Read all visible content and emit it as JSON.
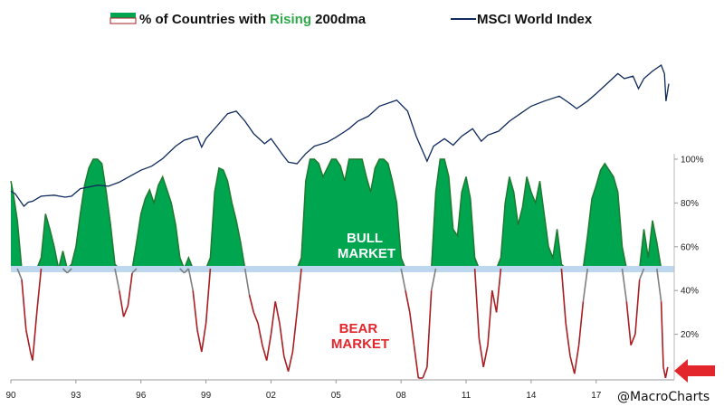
{
  "chart_data": {
    "type": "line",
    "legend": {
      "placement": "top",
      "series1_parts": [
        "% of Countries with ",
        "Rising",
        " 200dma"
      ],
      "series2": "MSCI World Index"
    },
    "series": [
      {
        "name": "% of Countries with Rising 200dma",
        "unit": "percent",
        "points": [
          [
            1990.0,
            90
          ],
          [
            1990.1,
            85
          ],
          [
            1990.3,
            72
          ],
          [
            1990.5,
            45
          ],
          [
            1990.7,
            22
          ],
          [
            1990.9,
            12
          ],
          [
            1991.0,
            8
          ],
          [
            1991.2,
            30
          ],
          [
            1991.4,
            55
          ],
          [
            1991.6,
            75
          ],
          [
            1991.8,
            68
          ],
          [
            1992.0,
            60
          ],
          [
            1992.2,
            50
          ],
          [
            1992.4,
            58
          ],
          [
            1992.6,
            48
          ],
          [
            1992.8,
            52
          ],
          [
            1993.0,
            60
          ],
          [
            1993.2,
            75
          ],
          [
            1993.4,
            88
          ],
          [
            1993.6,
            96
          ],
          [
            1993.8,
            100
          ],
          [
            1994.0,
            100
          ],
          [
            1994.2,
            98
          ],
          [
            1994.4,
            85
          ],
          [
            1994.6,
            70
          ],
          [
            1994.8,
            52
          ],
          [
            1995.0,
            40
          ],
          [
            1995.2,
            28
          ],
          [
            1995.4,
            33
          ],
          [
            1995.6,
            48
          ],
          [
            1995.8,
            62
          ],
          [
            1996.0,
            75
          ],
          [
            1996.2,
            82
          ],
          [
            1996.4,
            86
          ],
          [
            1996.6,
            80
          ],
          [
            1996.8,
            88
          ],
          [
            1997.0,
            92
          ],
          [
            1997.2,
            86
          ],
          [
            1997.4,
            80
          ],
          [
            1997.6,
            70
          ],
          [
            1997.8,
            55
          ],
          [
            1998.0,
            48
          ],
          [
            1998.2,
            55
          ],
          [
            1998.4,
            40
          ],
          [
            1998.6,
            22
          ],
          [
            1998.8,
            12
          ],
          [
            1999.0,
            25
          ],
          [
            1999.2,
            55
          ],
          [
            1999.4,
            85
          ],
          [
            1999.6,
            96
          ],
          [
            1999.8,
            95
          ],
          [
            2000.0,
            90
          ],
          [
            2000.2,
            80
          ],
          [
            2000.4,
            72
          ],
          [
            2000.6,
            62
          ],
          [
            2000.8,
            50
          ],
          [
            2001.0,
            38
          ],
          [
            2001.2,
            30
          ],
          [
            2001.4,
            25
          ],
          [
            2001.6,
            15
          ],
          [
            2001.8,
            8
          ],
          [
            2002.0,
            20
          ],
          [
            2002.2,
            35
          ],
          [
            2002.4,
            25
          ],
          [
            2002.6,
            10
          ],
          [
            2002.8,
            3
          ],
          [
            2003.0,
            12
          ],
          [
            2003.2,
            30
          ],
          [
            2003.4,
            55
          ],
          [
            2003.6,
            90
          ],
          [
            2003.8,
            100
          ],
          [
            2004.0,
            100
          ],
          [
            2004.2,
            98
          ],
          [
            2004.4,
            92
          ],
          [
            2004.6,
            96
          ],
          [
            2004.8,
            100
          ],
          [
            2005.0,
            100
          ],
          [
            2005.2,
            97
          ],
          [
            2005.4,
            90
          ],
          [
            2005.6,
            100
          ],
          [
            2005.8,
            100
          ],
          [
            2006.0,
            100
          ],
          [
            2006.2,
            100
          ],
          [
            2006.4,
            92
          ],
          [
            2006.6,
            85
          ],
          [
            2006.8,
            96
          ],
          [
            2007.0,
            100
          ],
          [
            2007.2,
            100
          ],
          [
            2007.4,
            98
          ],
          [
            2007.6,
            90
          ],
          [
            2007.8,
            80
          ],
          [
            2008.0,
            55
          ],
          [
            2008.2,
            40
          ],
          [
            2008.4,
            30
          ],
          [
            2008.6,
            15
          ],
          [
            2008.8,
            0
          ],
          [
            2009.0,
            0
          ],
          [
            2009.2,
            5
          ],
          [
            2009.4,
            40
          ],
          [
            2009.6,
            85
          ],
          [
            2009.8,
            100
          ],
          [
            2010.0,
            100
          ],
          [
            2010.2,
            92
          ],
          [
            2010.4,
            68
          ],
          [
            2010.6,
            65
          ],
          [
            2010.8,
            85
          ],
          [
            2011.0,
            92
          ],
          [
            2011.2,
            82
          ],
          [
            2011.4,
            55
          ],
          [
            2011.6,
            18
          ],
          [
            2011.8,
            5
          ],
          [
            2012.0,
            15
          ],
          [
            2012.2,
            40
          ],
          [
            2012.4,
            30
          ],
          [
            2012.6,
            55
          ],
          [
            2012.8,
            80
          ],
          [
            2013.0,
            92
          ],
          [
            2013.2,
            85
          ],
          [
            2013.4,
            70
          ],
          [
            2013.6,
            78
          ],
          [
            2013.8,
            92
          ],
          [
            2014.0,
            85
          ],
          [
            2014.2,
            80
          ],
          [
            2014.4,
            90
          ],
          [
            2014.6,
            75
          ],
          [
            2014.8,
            60
          ],
          [
            2015.0,
            55
          ],
          [
            2015.2,
            68
          ],
          [
            2015.4,
            52
          ],
          [
            2015.6,
            25
          ],
          [
            2015.8,
            10
          ],
          [
            2016.0,
            2
          ],
          [
            2016.2,
            15
          ],
          [
            2016.4,
            35
          ],
          [
            2016.6,
            65
          ],
          [
            2016.8,
            82
          ],
          [
            2017.0,
            88
          ],
          [
            2017.2,
            95
          ],
          [
            2017.4,
            98
          ],
          [
            2017.6,
            95
          ],
          [
            2017.8,
            92
          ],
          [
            2018.0,
            85
          ],
          [
            2018.2,
            60
          ],
          [
            2018.4,
            35
          ],
          [
            2018.6,
            15
          ],
          [
            2018.8,
            20
          ],
          [
            2019.0,
            45
          ],
          [
            2019.2,
            68
          ],
          [
            2019.4,
            55
          ],
          [
            2019.6,
            72
          ],
          [
            2019.8,
            62
          ],
          [
            2020.0,
            35
          ],
          [
            2020.1,
            5
          ],
          [
            2020.2,
            0
          ],
          [
            2020.3,
            5
          ]
        ]
      },
      {
        "name": "MSCI World Index",
        "unit": "index",
        "points": [
          [
            1990.0,
            0.3
          ],
          [
            1990.2,
            0.25
          ],
          [
            1990.6,
            0.0
          ],
          [
            1990.8,
            0.08
          ],
          [
            1991.0,
            0.1
          ],
          [
            1991.4,
            0.2
          ],
          [
            1992.0,
            0.22
          ],
          [
            1992.5,
            0.18
          ],
          [
            1992.8,
            0.2
          ],
          [
            1993.2,
            0.35
          ],
          [
            1994.0,
            0.42
          ],
          [
            1994.5,
            0.4
          ],
          [
            1995.0,
            0.48
          ],
          [
            1995.5,
            0.6
          ],
          [
            1996.0,
            0.72
          ],
          [
            1996.5,
            0.8
          ],
          [
            1997.0,
            0.95
          ],
          [
            1997.6,
            1.2
          ],
          [
            1998.0,
            1.32
          ],
          [
            1998.6,
            1.4
          ],
          [
            1998.8,
            1.18
          ],
          [
            1999.0,
            1.35
          ],
          [
            1999.5,
            1.6
          ],
          [
            2000.0,
            1.85
          ],
          [
            2000.4,
            1.9
          ],
          [
            2000.8,
            1.7
          ],
          [
            2001.2,
            1.45
          ],
          [
            2001.7,
            1.25
          ],
          [
            2002.0,
            1.35
          ],
          [
            2002.5,
            1.05
          ],
          [
            2002.8,
            0.88
          ],
          [
            2003.2,
            0.85
          ],
          [
            2003.6,
            1.05
          ],
          [
            2004.0,
            1.2
          ],
          [
            2004.6,
            1.28
          ],
          [
            2005.0,
            1.38
          ],
          [
            2005.6,
            1.55
          ],
          [
            2006.0,
            1.7
          ],
          [
            2006.5,
            1.8
          ],
          [
            2007.0,
            2.0
          ],
          [
            2007.8,
            2.12
          ],
          [
            2008.3,
            1.9
          ],
          [
            2008.7,
            1.4
          ],
          [
            2009.2,
            0.9
          ],
          [
            2009.5,
            1.2
          ],
          [
            2010.0,
            1.35
          ],
          [
            2010.4,
            1.22
          ],
          [
            2010.8,
            1.4
          ],
          [
            2011.3,
            1.55
          ],
          [
            2011.7,
            1.3
          ],
          [
            2012.0,
            1.42
          ],
          [
            2012.5,
            1.5
          ],
          [
            2013.0,
            1.7
          ],
          [
            2013.5,
            1.85
          ],
          [
            2014.0,
            2.0
          ],
          [
            2014.6,
            2.1
          ],
          [
            2015.3,
            2.2
          ],
          [
            2015.8,
            2.05
          ],
          [
            2016.1,
            1.95
          ],
          [
            2016.6,
            2.1
          ],
          [
            2017.0,
            2.25
          ],
          [
            2017.5,
            2.45
          ],
          [
            2018.0,
            2.65
          ],
          [
            2018.3,
            2.55
          ],
          [
            2018.7,
            2.6
          ],
          [
            2018.95,
            2.35
          ],
          [
            2019.2,
            2.55
          ],
          [
            2019.6,
            2.7
          ],
          [
            2020.0,
            2.82
          ],
          [
            2020.15,
            2.65
          ],
          [
            2020.22,
            2.1
          ],
          [
            2020.35,
            2.45
          ]
        ]
      }
    ],
    "threshold": 50,
    "zones": {
      "above": "BULL\nMARKET",
      "below": "BEAR\nMARKET"
    },
    "x_ticks": [
      "90",
      "93",
      "96",
      "99",
      "02",
      "05",
      "08",
      "11",
      "14",
      "17"
    ],
    "x_tick_years": [
      1990,
      1993,
      1996,
      1999,
      2002,
      2005,
      2008,
      2011,
      2014,
      2017
    ],
    "xlim": [
      1990,
      2020.6
    ],
    "y_right_ticks": [
      "100%",
      "80%",
      "60%",
      "40%",
      "20%"
    ],
    "y_right_values": [
      100,
      80,
      60,
      40,
      20
    ],
    "ylim": [
      0,
      100
    ],
    "credit": "@MacroCharts",
    "colors": {
      "bull_fill": "#00a550",
      "bull_dark": "#1e7a2e",
      "bear_line": "#a81e22",
      "neutral": "#7f7f7f",
      "threshold_band": "#bdd7ee",
      "index_line": "#0f2a5c",
      "rising_text": "#2ea84a",
      "bull_text": "#ffffff",
      "bear_text": "#e3262c",
      "arrow": "#e3262c"
    }
  }
}
